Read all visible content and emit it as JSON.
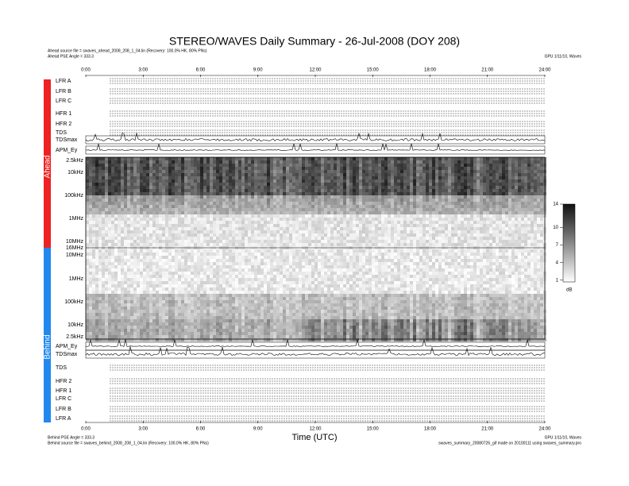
{
  "header": {
    "title": "STEREO/WAVES Daily Summary - 26-Jul-2008 (DOY 208)",
    "ahead_source": "Ahead source file = swaves_ahead_2008_208_1_04.lin (Recovery: 100.0% HK, 80% PNs)",
    "ahead_angle": "Ahead PSE Angle = 333.3",
    "top_right": "GPU 1/11/10, Waves"
  },
  "time_axis": {
    "label": "Time (UTC)",
    "ticks": [
      "0:00",
      "3:00",
      "6:00",
      "9:00",
      "12:00",
      "15:00",
      "18:00",
      "21:00",
      "24:00"
    ]
  },
  "ahead": {
    "side_label": "Ahead",
    "panels": [
      "LFR A",
      "LFR B",
      "LFR C",
      "HFR 1",
      "HFR 2",
      "TDS",
      "TDSmax",
      "APM_Ey"
    ],
    "freq_labels": [
      "2.5kHz",
      "10kHz",
      "100kHz",
      "1MHz",
      "10MHz",
      "16MHz"
    ]
  },
  "behind": {
    "side_label": "Behind",
    "panels": [
      "APM_Ey",
      "TDSmax",
      "TDS",
      "HFR 2",
      "HFR 1",
      "LFR C",
      "LFR B",
      "LFR A"
    ],
    "freq_labels": [
      "10MHz",
      "1MHz",
      "100kHz",
      "10kHz",
      "2.5kHz"
    ]
  },
  "colorbar": {
    "ticks": [
      14,
      10,
      7,
      4,
      1
    ],
    "range": [
      0.7,
      14
    ],
    "unit": "dB"
  },
  "footer": {
    "behind_angle": "Behind PSE Angle = 333.3",
    "behind_source": "Behind source file = swaves_behind_2008_208_1_04.lin (Recovery: 100.0% HK, 80% PNs)",
    "right_1": "GPU 1/11/10, Waves",
    "right_2": "swaves_summary_20080726_gif made on 20100111 using swaves_summary.pro"
  }
}
